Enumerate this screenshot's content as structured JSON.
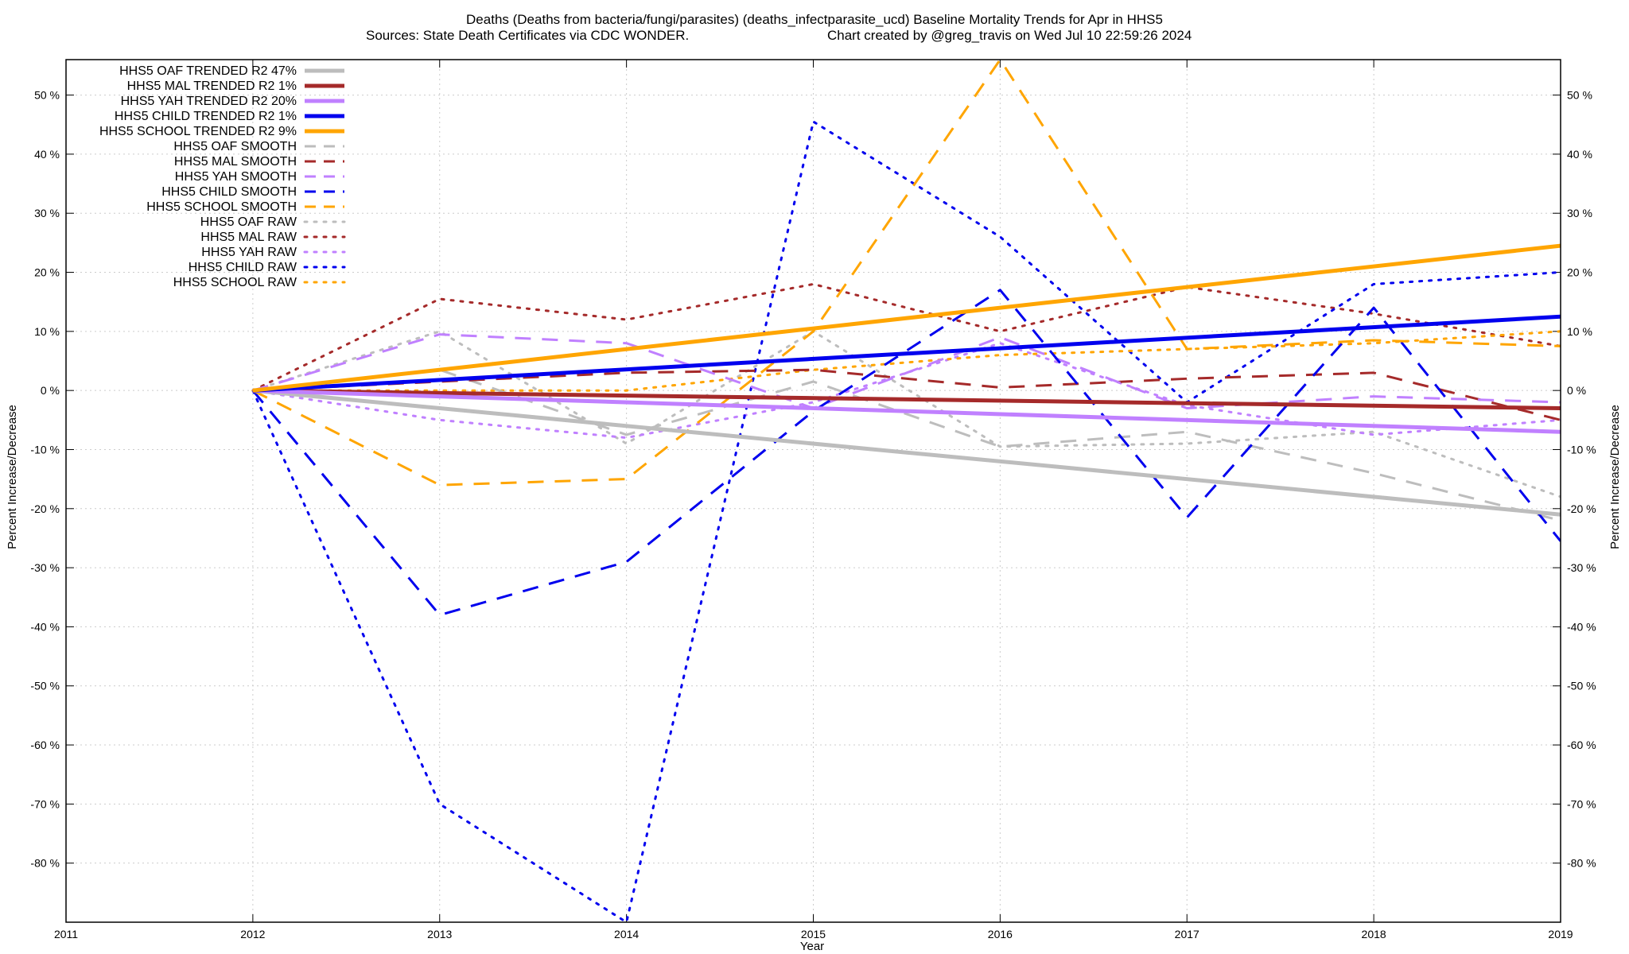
{
  "chart_data": {
    "type": "line",
    "title_line1": "Deaths (Deaths from bacteria/fungi/parasites) (deaths_infectparasite_ucd)  Baseline Mortality Trends for Apr in HHS5",
    "title_line2_left": "Sources: State Death Certificates via CDC WONDER.",
    "title_line2_right": "Chart created by @greg_travis on Wed Jul 10 22:59:26 2024",
    "xlabel": "Year",
    "ylabel_left": "Percent Increase/Decrease",
    "ylabel_right": "Percent Increase/Decrease",
    "xlim": [
      2011,
      2019
    ],
    "ylim": [
      -90,
      56
    ],
    "x_ticks": [
      2011,
      2012,
      2013,
      2014,
      2015,
      2016,
      2017,
      2018,
      2019
    ],
    "y_ticks": [
      50,
      40,
      30,
      20,
      10,
      0,
      -10,
      -20,
      -30,
      -40,
      -50,
      -60,
      -70,
      -80
    ],
    "y_tick_suffix": " %",
    "grid": true,
    "legend_position": "top-left",
    "series": [
      {
        "name": "HHS5 OAF TRENDED R2  47%",
        "style": "solid",
        "color": "#bdbdbd",
        "width": 5,
        "x": [
          2012,
          2019
        ],
        "y": [
          0,
          -21
        ]
      },
      {
        "name": "HHS5 MAL TRENDED R2   1%",
        "style": "solid",
        "color": "#a52a2a",
        "width": 5,
        "x": [
          2012,
          2019
        ],
        "y": [
          0,
          -3
        ]
      },
      {
        "name": "HHS5 YAH TRENDED R2  20%",
        "style": "solid",
        "color": "#c080ff",
        "width": 5,
        "x": [
          2012,
          2019
        ],
        "y": [
          0,
          -7
        ]
      },
      {
        "name": "HHS5 CHILD TRENDED R2   1%",
        "style": "solid",
        "color": "#0000ee",
        "width": 5,
        "x": [
          2012,
          2019
        ],
        "y": [
          0,
          12.5
        ]
      },
      {
        "name": "HHS5 SCHOOL TRENDED R2   9%",
        "style": "solid",
        "color": "#ffa500",
        "width": 5,
        "x": [
          2012,
          2019
        ],
        "y": [
          0,
          24.5
        ]
      },
      {
        "name": "HHS5 OAF SMOOTH",
        "style": "dashed",
        "color": "#bdbdbd",
        "width": 3,
        "x": [
          2012,
          2013,
          2014,
          2015,
          2016,
          2017,
          2018,
          2019
        ],
        "y": [
          0,
          3.5,
          -7.5,
          1.5,
          -9.5,
          -7,
          -14,
          -22
        ]
      },
      {
        "name": "HHS5 MAL SMOOTH",
        "style": "dashed",
        "color": "#a52a2a",
        "width": 3,
        "x": [
          2012,
          2013,
          2014,
          2015,
          2016,
          2017,
          2018,
          2019
        ],
        "y": [
          0,
          1.5,
          3,
          3.5,
          0.5,
          2,
          3,
          -5
        ]
      },
      {
        "name": "HHS5 YAH SMOOTH",
        "style": "dashed",
        "color": "#c080ff",
        "width": 3,
        "x": [
          2012,
          2013,
          2014,
          2015,
          2016,
          2017,
          2018,
          2019
        ],
        "y": [
          0,
          9.5,
          8,
          -3,
          9,
          -3,
          -1,
          -2
        ]
      },
      {
        "name": "HHS5 CHILD SMOOTH",
        "style": "dashed",
        "color": "#0000ee",
        "width": 3,
        "x": [
          2012,
          2013,
          2014,
          2015,
          2016,
          2017,
          2018,
          2019
        ],
        "y": [
          0,
          -38,
          -29,
          -3.5,
          17,
          -21.5,
          14,
          -25.5
        ]
      },
      {
        "name": "HHS5 SCHOOL SMOOTH",
        "style": "dashed",
        "color": "#ffa500",
        "width": 3,
        "x": [
          2012,
          2013,
          2014,
          2015,
          2016,
          2017,
          2018,
          2019
        ],
        "y": [
          0,
          -16,
          -15,
          10,
          56,
          7,
          8.5,
          7.5
        ]
      },
      {
        "name": "HHS5 OAF RAW",
        "style": "dotted",
        "color": "#bdbdbd",
        "width": 3,
        "x": [
          2012,
          2013,
          2014,
          2015,
          2016,
          2017,
          2018,
          2019
        ],
        "y": [
          0,
          10,
          -9,
          10,
          -9.5,
          -9,
          -7,
          -18
        ]
      },
      {
        "name": "HHS5 MAL RAW",
        "style": "dotted",
        "color": "#a52a2a",
        "width": 3,
        "x": [
          2012,
          2013,
          2014,
          2015,
          2016,
          2017,
          2018,
          2019
        ],
        "y": [
          0,
          15.5,
          12,
          18,
          10,
          17.5,
          13,
          7.5
        ]
      },
      {
        "name": "HHS5 YAH RAW",
        "style": "dotted",
        "color": "#c080ff",
        "width": 3,
        "x": [
          2012,
          2013,
          2014,
          2015,
          2016,
          2017,
          2018,
          2019
        ],
        "y": [
          0,
          -5,
          -8,
          -2,
          8,
          -2.5,
          -7.5,
          -5
        ]
      },
      {
        "name": "HHS5 CHILD RAW",
        "style": "dotted",
        "color": "#0000ee",
        "width": 3,
        "x": [
          2012,
          2013,
          2014,
          2015,
          2016,
          2017,
          2018,
          2019
        ],
        "y": [
          0,
          -70,
          -90,
          45.5,
          26,
          -2,
          18,
          20
        ]
      },
      {
        "name": "HHS5 SCHOOL RAW",
        "style": "dotted",
        "color": "#ffa500",
        "width": 3,
        "x": [
          2012,
          2013,
          2014,
          2015,
          2016,
          2017,
          2018,
          2019
        ],
        "y": [
          0,
          0,
          0,
          3.5,
          6,
          7,
          8,
          10
        ]
      }
    ]
  }
}
